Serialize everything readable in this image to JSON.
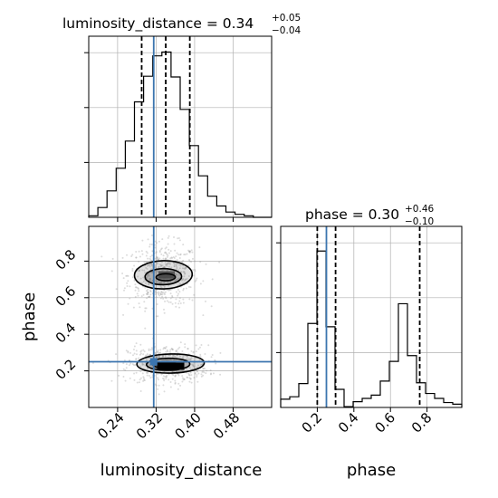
{
  "chart_data": {
    "type": "corner",
    "parameters": [
      "luminosity_distance",
      "phase"
    ],
    "truths": {
      "luminosity_distance": 0.315,
      "phase": 0.25
    },
    "colors": {
      "truth": "#3b75af",
      "hist": "#000000",
      "grid": "#b0b0b0",
      "points": "#9a9a9a"
    },
    "grid": true,
    "titles": {
      "luminosity_distance": {
        "name": "luminosity_distance",
        "value": "0.34",
        "plus": "+0.05",
        "minus": "−0.04"
      },
      "phase": {
        "name": "phase",
        "value": "0.30",
        "plus": "+0.46",
        "minus": "−0.10"
      }
    },
    "axis_labels": {
      "x1": "luminosity_distance",
      "x2": "phase",
      "y2": "phase"
    },
    "ticks": {
      "luminosity_distance": {
        "values": [
          0.24,
          0.32,
          0.4,
          0.48
        ],
        "labels": [
          "0.24",
          "0.32",
          "0.40",
          "0.48"
        ]
      },
      "phase": {
        "values": [
          0.2,
          0.4,
          0.6,
          0.8
        ],
        "labels": [
          "0.2",
          "0.4",
          "0.6",
          "0.8"
        ]
      }
    },
    "ranges": {
      "luminosity_distance": [
        0.18,
        0.56
      ],
      "phase": [
        0.0,
        0.99
      ]
    },
    "quantiles": {
      "luminosity_distance": [
        0.29,
        0.34,
        0.39
      ],
      "phase": [
        0.2,
        0.3,
        0.76
      ]
    },
    "histograms": {
      "luminosity_distance": {
        "edges": [
          0.18,
          0.199,
          0.218,
          0.237,
          0.256,
          0.275,
          0.294,
          0.313,
          0.332,
          0.351,
          0.37,
          0.389,
          0.408,
          0.427,
          0.446,
          0.465,
          0.484,
          0.503,
          0.522,
          0.541,
          0.56
        ],
        "counts": [
          2,
          13,
          35,
          65,
          101,
          153,
          187,
          214,
          219,
          186,
          143,
          95,
          55,
          28,
          15,
          7,
          4,
          2,
          0,
          0
        ],
        "ymax": 240
      },
      "phase": {
        "edges": [
          0.0,
          0.0495,
          0.099,
          0.1485,
          0.198,
          0.2475,
          0.297,
          0.3465,
          0.396,
          0.4455,
          0.495,
          0.5445,
          0.594,
          0.6435,
          0.693,
          0.7425,
          0.792,
          0.8415,
          0.891,
          0.9405,
          0.99
        ],
        "counts": [
          10,
          13,
          29,
          102,
          190,
          98,
          22,
          1,
          7,
          11,
          15,
          32,
          56,
          126,
          63,
          30,
          17,
          11,
          6,
          4
        ],
        "ymax": 220
      }
    },
    "scatter_2d": {
      "x_param": "luminosity_distance",
      "y_param": "phase",
      "modes": [
        {
          "x": 0.335,
          "y": 0.725,
          "sx": 0.032,
          "sy": 0.075,
          "weight": 0.5
        },
        {
          "x": 0.345,
          "y": 0.235,
          "sx": 0.036,
          "sy": 0.045,
          "weight": 0.5
        }
      ],
      "contours": [
        {
          "x": 0.335,
          "y": 0.725,
          "rx": 0.06,
          "ry": 0.14,
          "slant": -0.015
        },
        {
          "x": 0.335,
          "y": 0.715,
          "rx": 0.038,
          "ry": 0.08,
          "slant": -0.01
        },
        {
          "x": 0.34,
          "y": 0.712,
          "rx": 0.02,
          "ry": 0.035,
          "slant": -0.005
        },
        {
          "x": 0.35,
          "y": 0.24,
          "rx": 0.07,
          "ry": 0.095,
          "slant": -0.012
        },
        {
          "x": 0.345,
          "y": 0.236,
          "rx": 0.045,
          "ry": 0.06,
          "slant": -0.008
        },
        {
          "x": 0.34,
          "y": 0.232,
          "rx": 0.026,
          "ry": 0.03,
          "slant": -0.004
        }
      ]
    }
  }
}
